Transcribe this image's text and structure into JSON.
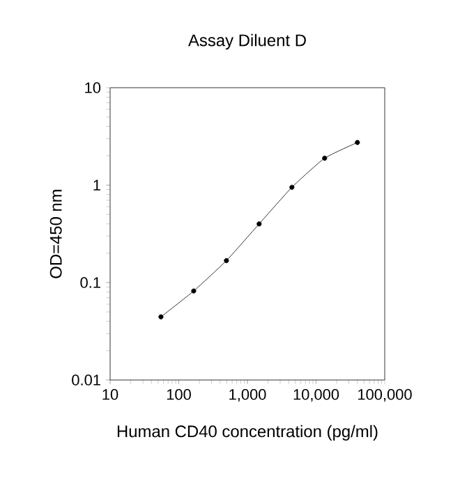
{
  "chart_data": {
    "type": "line",
    "title": "Assay Diluent D",
    "xlabel": "Human CD40 concentration (pg/ml)",
    "ylabel": "OD=450 nm",
    "x": [
      55,
      165,
      494,
      1481,
      4444,
      13333,
      40000
    ],
    "series": [
      {
        "color": "#000000",
        "values": [
          0.0445,
          0.082,
          0.168,
          0.4,
          0.95,
          1.89,
          2.74
        ]
      }
    ],
    "log": "xy",
    "marker": "circle",
    "line_style": "solid",
    "grid": false,
    "xlim": [
      10,
      100000
    ],
    "ylim": [
      0.01,
      10
    ],
    "xticks": [
      10,
      100,
      {
        "value": 1000,
        "label": "1,000"
      },
      {
        "value": 10000,
        "label": "10,000"
      },
      {
        "value": 100000,
        "label": "100,000"
      }
    ],
    "yticks": [
      0.01,
      0.1,
      1,
      10
    ]
  }
}
